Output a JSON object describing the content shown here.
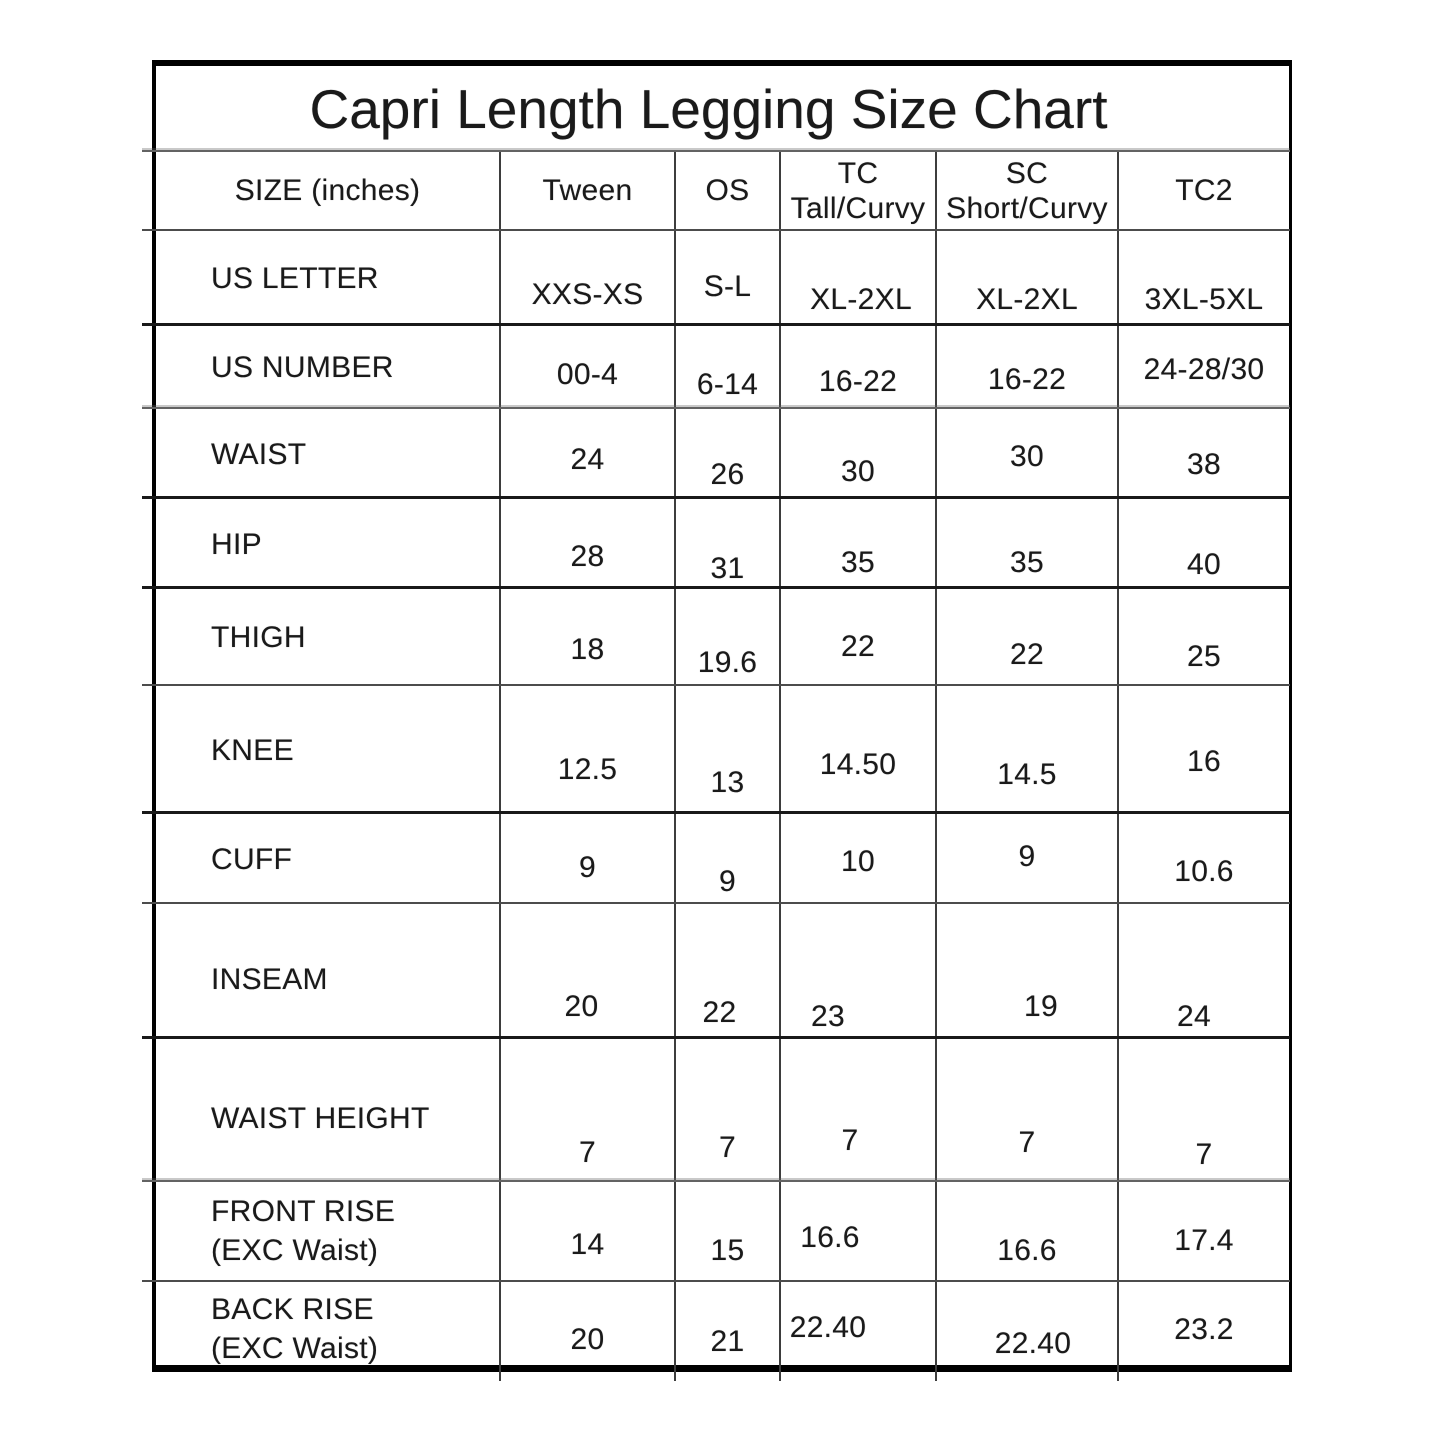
{
  "title": "Capri Length Legging Size Chart",
  "table": {
    "columns": [
      "SIZE (inches)",
      "Tween",
      "OS",
      "TC\nTall/Curvy",
      "SC\nShort/Curvy",
      "TC2"
    ],
    "rows": [
      {
        "label": "US LETTER",
        "values": [
          "XXS-XS",
          "S-L",
          "XL-2XL",
          "XL-2XL",
          "3XL-5XL"
        ]
      },
      {
        "label": "US NUMBER",
        "values": [
          "00-4",
          "6-14",
          "16-22",
          "16-22",
          "24-28/30"
        ]
      },
      {
        "label": "WAIST",
        "values": [
          "24",
          "26",
          "30",
          "30",
          "38"
        ]
      },
      {
        "label": "HIP",
        "values": [
          "28",
          "31",
          "35",
          "35",
          "40"
        ]
      },
      {
        "label": "THIGH",
        "values": [
          "18",
          "19.6",
          "22",
          "22",
          "25"
        ]
      },
      {
        "label": "KNEE",
        "values": [
          "12.5",
          "13",
          "14.50",
          "14.5",
          "16"
        ]
      },
      {
        "label": "CUFF",
        "values": [
          "9",
          "9",
          "10",
          "9",
          "10.6"
        ]
      },
      {
        "label": "INSEAM",
        "values": [
          "20",
          "22",
          "23",
          "19",
          "24"
        ]
      },
      {
        "label": "WAIST HEIGHT",
        "values": [
          "7",
          "7",
          "7",
          "7",
          "7"
        ]
      },
      {
        "label": "FRONT RISE\n(EXC Waist)",
        "values": [
          "14",
          "15",
          "16.6",
          "16.6",
          "17.4"
        ]
      },
      {
        "label": "BACK RISE\n(EXC Waist)",
        "values": [
          "20",
          "21",
          "22.40",
          "22.40",
          "23.2"
        ]
      }
    ]
  },
  "chart_data": {
    "type": "table",
    "title": "Capri Length Legging Size Chart",
    "units": "inches",
    "columns": [
      "SIZE (inches)",
      "Tween",
      "OS",
      "TC Tall/Curvy",
      "SC Short/Curvy",
      "TC2"
    ],
    "rows": [
      [
        "US LETTER",
        "XXS-XS",
        "S-L",
        "XL-2XL",
        "XL-2XL",
        "3XL-5XL"
      ],
      [
        "US NUMBER",
        "00-4",
        "6-14",
        "16-22",
        "16-22",
        "24-28/30"
      ],
      [
        "WAIST",
        "24",
        "26",
        "30",
        "30",
        "38"
      ],
      [
        "HIP",
        "28",
        "31",
        "35",
        "35",
        "40"
      ],
      [
        "THIGH",
        "18",
        "19.6",
        "22",
        "22",
        "25"
      ],
      [
        "KNEE",
        "12.5",
        "13",
        "14.50",
        "14.5",
        "16"
      ],
      [
        "CUFF",
        "9",
        "9",
        "10",
        "9",
        "10.6"
      ],
      [
        "INSEAM",
        "20",
        "22",
        "23",
        "19",
        "24"
      ],
      [
        "WAIST HEIGHT",
        "7",
        "7",
        "7",
        "7",
        "7"
      ],
      [
        "FRONT RISE (EXC Waist)",
        "14",
        "15",
        "16.6",
        "16.6",
        "17.4"
      ],
      [
        "BACK RISE (EXC Waist)",
        "20",
        "21",
        "22.40",
        "22.40",
        "23.2"
      ]
    ]
  }
}
